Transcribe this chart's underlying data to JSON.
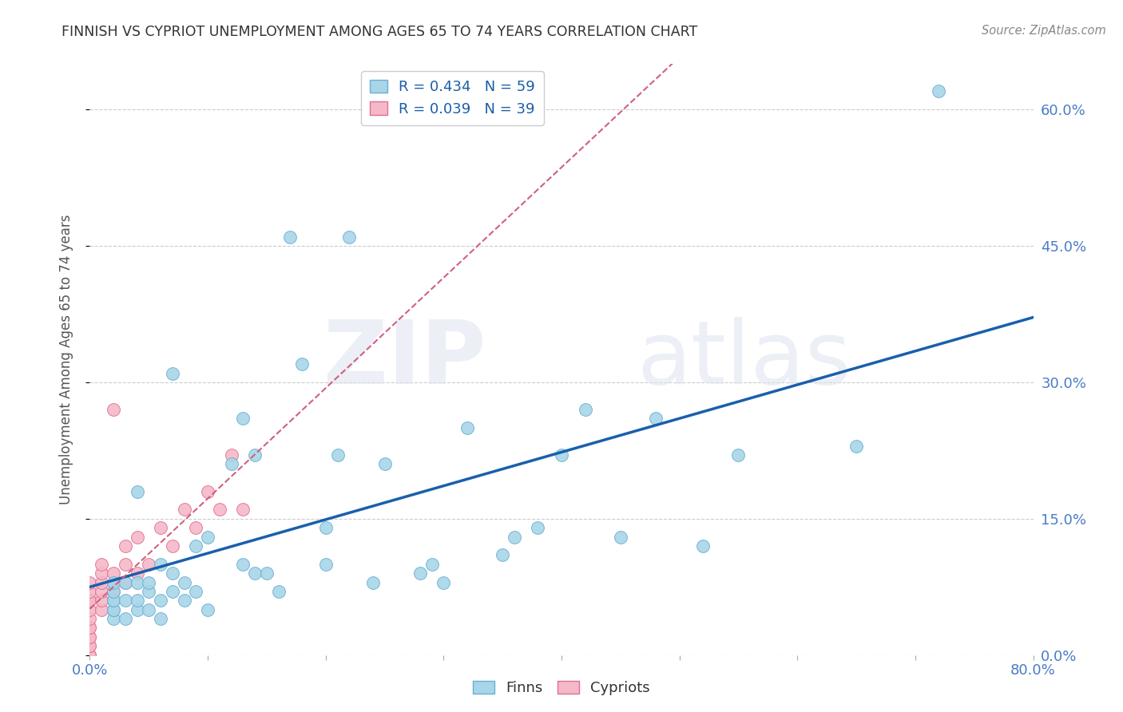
{
  "title": "FINNISH VS CYPRIOT UNEMPLOYMENT AMONG AGES 65 TO 74 YEARS CORRELATION CHART",
  "source": "Source: ZipAtlas.com",
  "ylabel": "Unemployment Among Ages 65 to 74 years",
  "xlim": [
    0.0,
    0.8
  ],
  "ylim": [
    0.0,
    0.65
  ],
  "xticks": [
    0.0,
    0.1,
    0.2,
    0.3,
    0.4,
    0.5,
    0.6,
    0.7,
    0.8
  ],
  "yticks": [
    0.0,
    0.15,
    0.3,
    0.45,
    0.6
  ],
  "ytick_labels": [
    "0.0%",
    "15.0%",
    "30.0%",
    "45.0%",
    "60.0%"
  ],
  "xtick_labels": [
    "0.0%",
    "",
    "",
    "",
    "",
    "",
    "",
    "",
    "80.0%"
  ],
  "finn_color": "#a8d5e8",
  "finn_edge_color": "#6aafd4",
  "cypriot_color": "#f5b8c8",
  "cypriot_edge_color": "#e07090",
  "finn_R": 0.434,
  "finn_N": 59,
  "cypriot_R": 0.039,
  "cypriot_N": 39,
  "trendline_finn_color": "#1a5fad",
  "trendline_cypriot_color": "#d06080",
  "grid_color": "#cccccc",
  "title_color": "#333333",
  "axis_label_color": "#4a7cc7",
  "legend_color": "#1a5da8",
  "finns_x": [
    0.02,
    0.02,
    0.02,
    0.02,
    0.02,
    0.02,
    0.02,
    0.03,
    0.03,
    0.03,
    0.04,
    0.04,
    0.04,
    0.04,
    0.05,
    0.05,
    0.05,
    0.06,
    0.06,
    0.06,
    0.07,
    0.07,
    0.07,
    0.08,
    0.08,
    0.09,
    0.09,
    0.1,
    0.1,
    0.12,
    0.13,
    0.13,
    0.14,
    0.14,
    0.15,
    0.16,
    0.17,
    0.18,
    0.2,
    0.2,
    0.21,
    0.22,
    0.24,
    0.25,
    0.28,
    0.29,
    0.3,
    0.32,
    0.35,
    0.36,
    0.38,
    0.4,
    0.42,
    0.45,
    0.48,
    0.52,
    0.55,
    0.65,
    0.72
  ],
  "finns_y": [
    0.04,
    0.05,
    0.05,
    0.06,
    0.06,
    0.07,
    0.08,
    0.04,
    0.06,
    0.08,
    0.05,
    0.06,
    0.08,
    0.18,
    0.05,
    0.07,
    0.08,
    0.04,
    0.06,
    0.1,
    0.07,
    0.09,
    0.31,
    0.06,
    0.08,
    0.07,
    0.12,
    0.05,
    0.13,
    0.21,
    0.1,
    0.26,
    0.09,
    0.22,
    0.09,
    0.07,
    0.46,
    0.32,
    0.1,
    0.14,
    0.22,
    0.46,
    0.08,
    0.21,
    0.09,
    0.1,
    0.08,
    0.25,
    0.11,
    0.13,
    0.14,
    0.22,
    0.27,
    0.13,
    0.26,
    0.12,
    0.22,
    0.23,
    0.62
  ],
  "cypriots_x": [
    0.0,
    0.0,
    0.0,
    0.0,
    0.0,
    0.0,
    0.0,
    0.0,
    0.0,
    0.0,
    0.0,
    0.0,
    0.0,
    0.0,
    0.0,
    0.01,
    0.01,
    0.01,
    0.01,
    0.01,
    0.01,
    0.02,
    0.02,
    0.02,
    0.02,
    0.03,
    0.03,
    0.03,
    0.04,
    0.04,
    0.05,
    0.06,
    0.07,
    0.08,
    0.09,
    0.1,
    0.11,
    0.12,
    0.13
  ],
  "cypriots_y": [
    0.0,
    0.0,
    0.0,
    0.01,
    0.01,
    0.02,
    0.02,
    0.03,
    0.03,
    0.04,
    0.05,
    0.06,
    0.06,
    0.07,
    0.08,
    0.05,
    0.06,
    0.07,
    0.08,
    0.09,
    0.1,
    0.07,
    0.08,
    0.09,
    0.27,
    0.08,
    0.1,
    0.12,
    0.09,
    0.13,
    0.1,
    0.14,
    0.12,
    0.16,
    0.14,
    0.18,
    0.16,
    0.22,
    0.16
  ]
}
